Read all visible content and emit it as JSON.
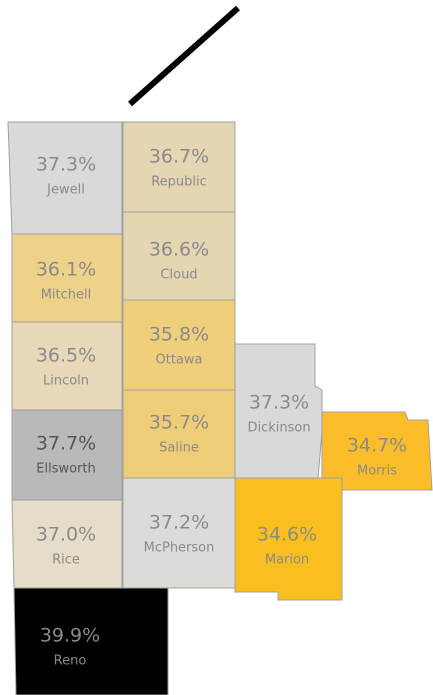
{
  "counties": [
    {
      "name": "Jewell",
      "label": "37.3%",
      "color": "#d9d9d9",
      "text_color": "#8a8a8a"
    },
    {
      "name": "Republic",
      "label": "36.7%",
      "color": "#e4d5b3",
      "text_color": "#8a8a8a"
    },
    {
      "name": "Mitchell",
      "label": "36.1%",
      "color": "#eed28a",
      "text_color": "#8a8a8a"
    },
    {
      "name": "Cloud",
      "label": "36.6%",
      "color": "#e4d5b3",
      "text_color": "#8a8a8a"
    },
    {
      "name": "Lincoln",
      "label": "36.5%",
      "color": "#e6d8b9",
      "text_color": "#8a8a8a"
    },
    {
      "name": "Ottawa",
      "label": "35.8%",
      "color": "#efcf7c",
      "text_color": "#8a8a8a"
    },
    {
      "name": "Ellsworth",
      "label": "37.7%",
      "color": "#b9b9b9",
      "text_color": "#555555"
    },
    {
      "name": "Saline",
      "label": "35.7%",
      "color": "#efcd78",
      "text_color": "#8a8a8a"
    },
    {
      "name": "Dickinson",
      "label": "37.3%",
      "color": "#d9d9d9",
      "text_color": "#8a8a8a"
    },
    {
      "name": "Morris",
      "label": "34.7%",
      "color": "#fbbd2a",
      "text_color": "#8a8a8a"
    },
    {
      "name": "Marion",
      "label": "34.6%",
      "color": "#f9bf1f",
      "text_color": "#8a8a8a"
    },
    {
      "name": "McPherson",
      "label": "37.2%",
      "color": "#dcdbd8",
      "text_color": "#8a8a8a"
    },
    {
      "name": "Rice",
      "label": "37.0%",
      "color": "#e5dcc9",
      "text_color": "#8a8a8a"
    },
    {
      "name": "Reno",
      "label": "39.9%",
      "color": "#000000",
      "text_color": "#8a8a8a"
    }
  ]
}
